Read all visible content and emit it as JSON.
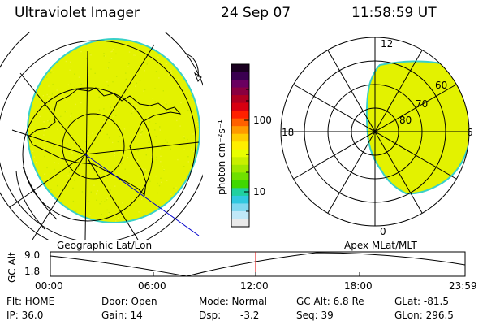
{
  "header": {
    "instrument": "Ultraviolet Imager",
    "date": "24 Sep 07",
    "time": "11:58:59 UT"
  },
  "colorbar": {
    "unit_label": "photon cm⁻²s⁻¹",
    "tick_labels": [
      "100",
      "10"
    ],
    "colors": [
      "#1a0020",
      "#3a0050",
      "#6a0060",
      "#8a0040",
      "#b00020",
      "#d80010",
      "#ff2000",
      "#ff6000",
      "#ff9a00",
      "#ffcc00",
      "#ffee00",
      "#e8ff00",
      "#c8f000",
      "#a0e800",
      "#70e000",
      "#40d800",
      "#20d0a0",
      "#30c8e0",
      "#80d8f0",
      "#c0e8f8",
      "#eaeaea"
    ]
  },
  "left_map": {
    "label": "Geographic Lat/Lon",
    "fill_color": "#e3f200"
  },
  "polar_plot": {
    "label": "Apex MLat/MLT",
    "mlt_labels": {
      "top": "12",
      "left": "18",
      "right": "6",
      "bottom": "0"
    },
    "lat_labels": [
      "60",
      "70",
      "80"
    ],
    "fill_color": "#e3f200"
  },
  "altitude_plot": {
    "ylabel": "GC Alt",
    "y_ticks": [
      "9.0",
      "1.8"
    ],
    "x_ticks": [
      "00:00",
      "06:00",
      "12:00",
      "18:00",
      "23:59"
    ],
    "marker_color": "#e00000"
  },
  "status": {
    "flt": "Flt: HOME",
    "door": "Door: Open",
    "mode": "Mode: Normal",
    "gc_alt": "GC Alt: 6.8 Re",
    "glat": "GLat: -81.5",
    "ip": "IP: 36.0",
    "gain": "Gain: 14",
    "dsp_label": "Dsp:",
    "dsp_value": "-3.2",
    "seq": "Seq: 39",
    "glon": "GLon: 296.5"
  }
}
